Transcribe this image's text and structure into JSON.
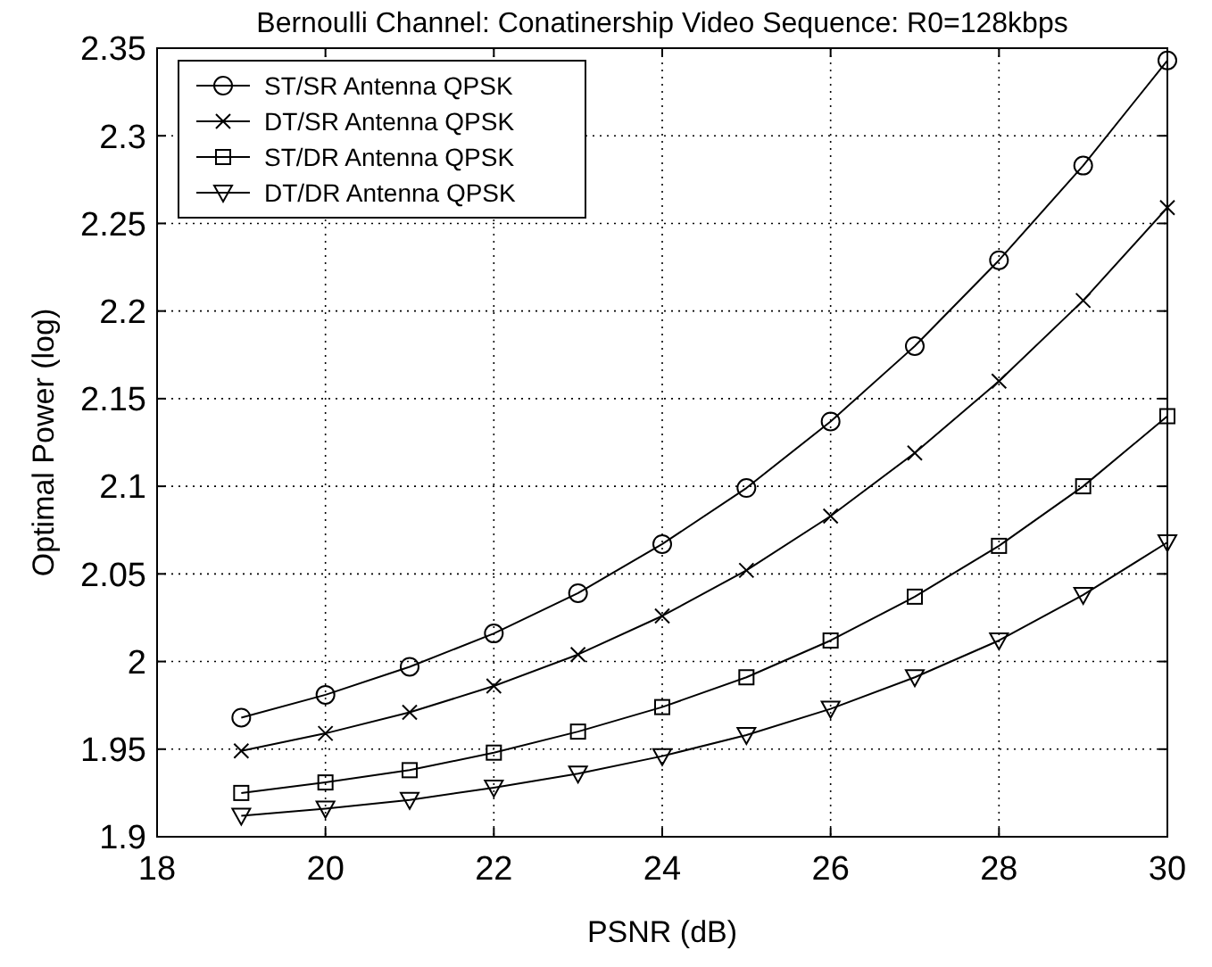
{
  "chart_data": {
    "type": "line",
    "title": "Bernoulli Channel: Conatinership Video Sequence: R0=128kbps",
    "xlabel": "PSNR (dB)",
    "ylabel": "Optimal Power (log)",
    "x": [
      19,
      20,
      21,
      22,
      23,
      24,
      25,
      26,
      27,
      28,
      29,
      30
    ],
    "series": [
      {
        "name": "ST/SR Antenna QPSK",
        "color": "#000000",
        "marker": "circle",
        "values": [
          1.968,
          1.981,
          1.997,
          2.016,
          2.039,
          2.067,
          2.099,
          2.137,
          2.18,
          2.229,
          2.283,
          2.343
        ]
      },
      {
        "name": "DT/SR Antenna QPSK",
        "color": "#000000",
        "marker": "cross",
        "values": [
          1.949,
          1.959,
          1.971,
          1.986,
          2.004,
          2.026,
          2.052,
          2.083,
          2.119,
          2.16,
          2.206,
          2.259
        ]
      },
      {
        "name": "ST/DR Antenna QPSK",
        "color": "#000000",
        "marker": "square",
        "values": [
          1.925,
          1.931,
          1.938,
          1.948,
          1.96,
          1.974,
          1.991,
          2.012,
          2.037,
          2.066,
          2.1,
          2.14
        ]
      },
      {
        "name": "DT/DR Antenna QPSK",
        "color": "#000000",
        "marker": "triangle",
        "values": [
          1.912,
          1.916,
          1.921,
          1.928,
          1.936,
          1.946,
          1.958,
          1.973,
          1.991,
          2.012,
          2.038,
          2.068
        ]
      }
    ],
    "xlim": [
      18,
      30
    ],
    "xticks": [
      18,
      20,
      22,
      24,
      26,
      28,
      30
    ],
    "ylim": [
      1.9,
      2.35
    ],
    "yticks": [
      1.9,
      1.95,
      2,
      2.05,
      2.1,
      2.15,
      2.2,
      2.25,
      2.3,
      2.35
    ],
    "grid": true,
    "legend": "top left",
    "line_style": "solid"
  }
}
